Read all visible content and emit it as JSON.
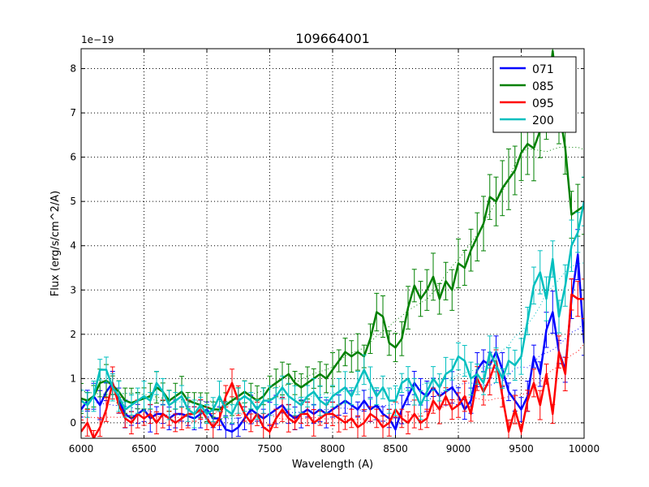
{
  "chart_data": {
    "type": "line",
    "title": "109664001",
    "xlabel": "Wavelength (A)",
    "ylabel": "Flux (erg/s/cm^2/A)",
    "scale_label": "1e−19",
    "xlim": [
      6000,
      10000
    ],
    "ylim": [
      -0.35,
      8.45
    ],
    "xticks": [
      6000,
      6500,
      7000,
      7500,
      8000,
      8500,
      9000,
      9500,
      10000
    ],
    "yticks": [
      0,
      1,
      2,
      3,
      4,
      5,
      6,
      7,
      8
    ],
    "grid": true,
    "legend_position": "top-right",
    "series": [
      {
        "name": "071",
        "color": "#0000ff",
        "x": [
          6000,
          6050,
          6100,
          6150,
          6200,
          6250,
          6300,
          6350,
          6400,
          6450,
          6500,
          6550,
          6600,
          6650,
          6700,
          6750,
          6800,
          6850,
          6900,
          6950,
          7000,
          7050,
          7100,
          7150,
          7200,
          7250,
          7300,
          7350,
          7400,
          7450,
          7500,
          7550,
          7600,
          7650,
          7700,
          7750,
          7800,
          7850,
          7900,
          7950,
          8000,
          8050,
          8100,
          8150,
          8200,
          8250,
          8300,
          8350,
          8400,
          8450,
          8500,
          8550,
          8600,
          8650,
          8700,
          8750,
          8800,
          8850,
          8900,
          8950,
          9000,
          9050,
          9100,
          9150,
          9200,
          9250,
          9300,
          9350,
          9400,
          9450,
          9500,
          9550,
          9600,
          9650,
          9700,
          9750,
          9800,
          9850,
          9900,
          9950,
          10000
        ],
        "y": [
          0.3,
          0.5,
          0.6,
          0.4,
          0.7,
          0.9,
          0.5,
          0.2,
          0.1,
          0.2,
          0.3,
          0.1,
          0.2,
          0.2,
          0.1,
          0.2,
          0.2,
          0.15,
          0.1,
          0.2,
          0.3,
          0.1,
          0.1,
          -0.15,
          -0.2,
          -0.1,
          0.1,
          0.3,
          0.2,
          0.1,
          0.2,
          0.3,
          0.4,
          0.2,
          0.1,
          0.2,
          0.3,
          0.2,
          0.3,
          0.2,
          0.3,
          0.4,
          0.5,
          0.4,
          0.3,
          0.5,
          0.3,
          0.4,
          0.2,
          0.1,
          -0.15,
          0.3,
          0.6,
          0.9,
          0.7,
          0.6,
          0.8,
          0.6,
          0.7,
          0.8,
          0.6,
          0.3,
          0.5,
          1.2,
          1.4,
          1.3,
          1.6,
          1.2,
          0.7,
          0.5,
          0.3,
          0.6,
          1.5,
          1.1,
          2.1,
          2.5,
          1.6,
          1.2,
          2.8,
          3.8,
          1.8
        ]
      },
      {
        "name": "085",
        "color": "#008000",
        "x": [
          6000,
          6050,
          6100,
          6150,
          6200,
          6250,
          6300,
          6350,
          6400,
          6450,
          6500,
          6550,
          6600,
          6650,
          6700,
          6750,
          6800,
          6850,
          6900,
          6950,
          7000,
          7050,
          7100,
          7150,
          7200,
          7250,
          7300,
          7350,
          7400,
          7450,
          7500,
          7550,
          7600,
          7650,
          7700,
          7750,
          7800,
          7850,
          7900,
          7950,
          8000,
          8050,
          8100,
          8150,
          8200,
          8250,
          8300,
          8350,
          8400,
          8450,
          8500,
          8550,
          8600,
          8650,
          8700,
          8750,
          8800,
          8850,
          8900,
          8950,
          9000,
          9050,
          9100,
          9150,
          9200,
          9250,
          9300,
          9350,
          9400,
          9450,
          9500,
          9550,
          9600,
          9650,
          9700,
          9750,
          9800,
          9850,
          9900,
          9950,
          10000
        ],
        "y": [
          0.55,
          0.5,
          0.6,
          0.9,
          0.95,
          0.85,
          0.7,
          0.5,
          0.45,
          0.5,
          0.55,
          0.6,
          0.8,
          0.7,
          0.5,
          0.6,
          0.7,
          0.5,
          0.45,
          0.4,
          0.35,
          0.3,
          0.3,
          0.4,
          0.5,
          0.6,
          0.7,
          0.6,
          0.5,
          0.6,
          0.8,
          0.9,
          1.0,
          1.1,
          0.9,
          0.8,
          0.9,
          1.0,
          1.1,
          1.0,
          1.2,
          1.4,
          1.6,
          1.5,
          1.6,
          1.5,
          1.9,
          2.5,
          2.4,
          1.8,
          1.7,
          1.9,
          2.6,
          3.1,
          2.8,
          3.0,
          3.3,
          2.8,
          3.2,
          3.0,
          3.6,
          3.5,
          3.9,
          4.2,
          4.5,
          5.1,
          5.0,
          5.3,
          5.5,
          5.7,
          6.1,
          6.3,
          6.2,
          6.6,
          7.1,
          8.4,
          7.1,
          6.2,
          4.7,
          4.8,
          4.9
        ]
      },
      {
        "name": "095",
        "color": "#ff0000",
        "x": [
          6000,
          6050,
          6100,
          6150,
          6200,
          6250,
          6300,
          6350,
          6400,
          6450,
          6500,
          6550,
          6600,
          6650,
          6700,
          6750,
          6800,
          6850,
          6900,
          6950,
          7000,
          7050,
          7100,
          7150,
          7200,
          7250,
          7300,
          7350,
          7400,
          7450,
          7500,
          7550,
          7600,
          7650,
          7700,
          7750,
          7800,
          7850,
          7900,
          7950,
          8000,
          8050,
          8100,
          8150,
          8200,
          8250,
          8300,
          8350,
          8400,
          8450,
          8500,
          8550,
          8600,
          8650,
          8700,
          8750,
          8800,
          8850,
          8900,
          8950,
          9000,
          9050,
          9100,
          9150,
          9200,
          9250,
          9300,
          9350,
          9400,
          9450,
          9500,
          9550,
          9600,
          9650,
          9700,
          9750,
          9800,
          9850,
          9900,
          9950,
          10000
        ],
        "y": [
          -0.2,
          0.0,
          -0.35,
          -0.1,
          0.3,
          0.9,
          0.4,
          0.1,
          0.0,
          0.2,
          0.1,
          0.2,
          0.0,
          0.2,
          0.1,
          0.0,
          0.1,
          0.2,
          0.2,
          0.3,
          0.1,
          -0.1,
          0.1,
          0.6,
          0.9,
          0.5,
          0.2,
          0.0,
          0.2,
          -0.1,
          -0.2,
          0.1,
          0.3,
          0.1,
          0.0,
          0.2,
          0.2,
          0.0,
          0.1,
          0.2,
          0.2,
          0.1,
          0.0,
          0.1,
          -0.1,
          0.0,
          0.2,
          0.1,
          -0.1,
          0.0,
          0.3,
          0.1,
          0.0,
          0.2,
          0.0,
          0.1,
          0.5,
          0.3,
          0.6,
          0.3,
          0.4,
          0.6,
          0.2,
          1.0,
          0.7,
          1.0,
          1.4,
          0.6,
          -0.2,
          0.3,
          -0.2,
          0.5,
          0.9,
          0.4,
          1.1,
          0.2,
          1.6,
          1.1,
          2.9,
          2.8,
          2.8
        ]
      },
      {
        "name": "200",
        "color": "#00bfbf",
        "x": [
          6000,
          6050,
          6100,
          6150,
          6200,
          6250,
          6300,
          6350,
          6400,
          6450,
          6500,
          6550,
          6600,
          6650,
          6700,
          6750,
          6800,
          6850,
          6900,
          6950,
          7000,
          7050,
          7100,
          7150,
          7200,
          7250,
          7300,
          7350,
          7400,
          7450,
          7500,
          7550,
          7600,
          7650,
          7700,
          7750,
          7800,
          7850,
          7900,
          7950,
          8000,
          8050,
          8100,
          8150,
          8200,
          8250,
          8300,
          8350,
          8400,
          8450,
          8500,
          8550,
          8600,
          8650,
          8700,
          8750,
          8800,
          8850,
          8900,
          8950,
          9000,
          9050,
          9100,
          9150,
          9200,
          9250,
          9300,
          9350,
          9400,
          9450,
          9500,
          9550,
          9600,
          9650,
          9700,
          9750,
          9800,
          9850,
          9900,
          9950,
          10000
        ],
        "y": [
          0.5,
          0.4,
          0.6,
          1.2,
          1.2,
          0.8,
          0.6,
          0.3,
          0.4,
          0.5,
          0.6,
          0.5,
          0.9,
          0.7,
          0.4,
          0.5,
          0.6,
          0.3,
          0.2,
          0.4,
          0.2,
          0.3,
          0.6,
          0.3,
          0.2,
          0.5,
          0.6,
          0.5,
          0.3,
          0.5,
          0.5,
          0.6,
          0.8,
          0.6,
          0.5,
          0.4,
          0.6,
          0.7,
          0.5,
          0.4,
          0.6,
          0.7,
          0.8,
          0.6,
          0.9,
          1.2,
          0.9,
          0.6,
          0.8,
          0.5,
          0.5,
          0.9,
          1.0,
          0.7,
          0.4,
          0.7,
          1.0,
          0.8,
          1.1,
          1.2,
          1.5,
          1.4,
          1.0,
          1.1,
          0.9,
          1.6,
          1.3,
          1.0,
          1.4,
          1.3,
          1.5,
          2.3,
          3.1,
          3.4,
          2.8,
          3.7,
          2.4,
          3.1,
          4.0,
          4.3,
          5.0
        ]
      }
    ]
  }
}
